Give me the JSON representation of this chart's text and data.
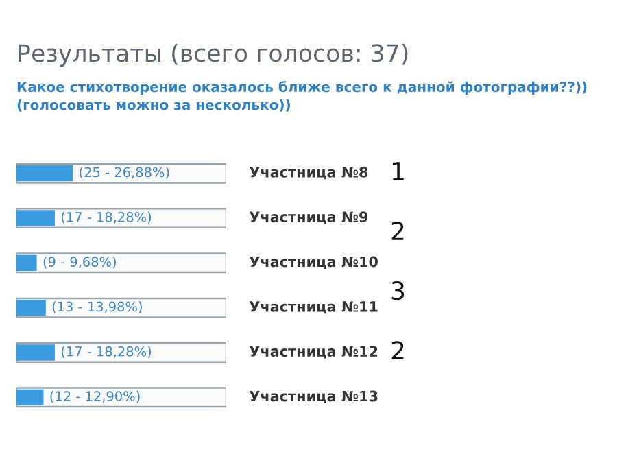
{
  "chart_data": {
    "type": "bar",
    "orientation": "horizontal",
    "title": "Результаты (всего голосов: 37)",
    "subtitle": "Какое стихотворение оказалось ближе всего к данной фотографии??))\n(голосовать можно за несколько))",
    "categories": [
      "Участница №8",
      "Участница №9",
      "Участница №10",
      "Участница №11",
      "Участница №12",
      "Участница №13"
    ],
    "values": [
      25,
      17,
      9,
      13,
      17,
      12
    ],
    "value_labels": [
      "(25 - 26,88%)",
      "(17 - 18,28%)",
      "(9 - 9,68%)",
      "(13 - 13,98%)",
      "(17 - 18,28%)",
      "(12 - 12,90%)"
    ],
    "color": "#3d9be0",
    "annotations": [
      "1",
      "2",
      "3",
      "2"
    ]
  }
}
